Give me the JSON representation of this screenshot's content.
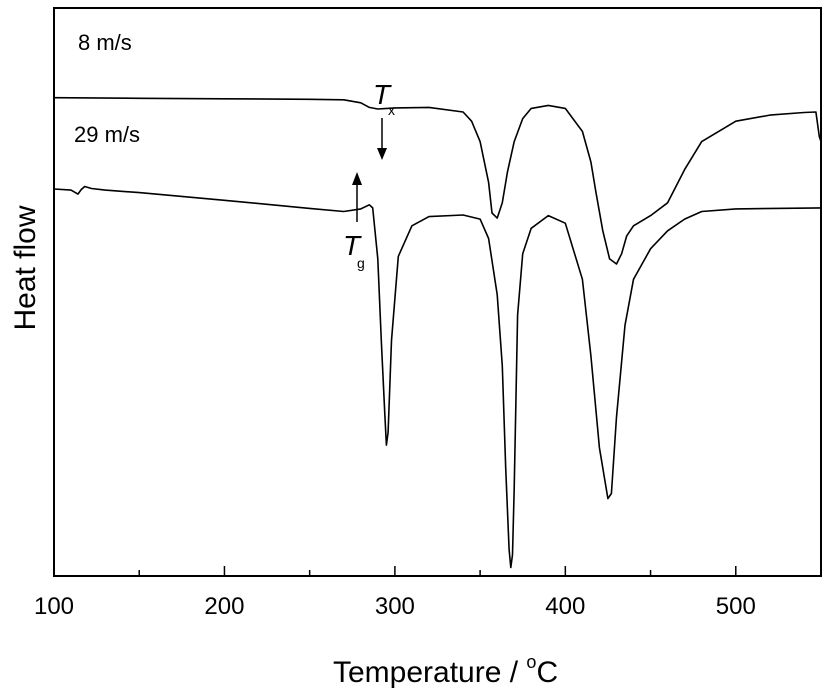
{
  "chart_data": {
    "type": "line",
    "xlabel": "Temperature / °C",
    "xlabel_main": "Temperature / ",
    "xlabel_degree": "o",
    "xlabel_unit": "C",
    "ylabel": "Heat flow",
    "xlim": [
      100,
      550
    ],
    "ylim": [
      0,
      100
    ],
    "x_ticks": [
      100,
      200,
      300,
      400,
      500
    ],
    "x_tick_labels": [
      "100",
      "200",
      "300",
      "400",
      "500"
    ],
    "x_minor_ticks": [
      150,
      250,
      350,
      450
    ],
    "y_ticks_shown": false,
    "grid": false,
    "series": [
      {
        "name": "8 m/s",
        "x": [
          100,
          150,
          200,
          250,
          270,
          280,
          285,
          290,
          300,
          320,
          340,
          345,
          350,
          355,
          357,
          360,
          363,
          366,
          370,
          375,
          380,
          390,
          400,
          410,
          415,
          418,
          422,
          426,
          430,
          433,
          436,
          440,
          450,
          460,
          470,
          480,
          500,
          520,
          540,
          547,
          549,
          550
        ],
        "y": [
          92.6,
          92.5,
          92.4,
          92.3,
          92.2,
          91.6,
          90.7,
          90.4,
          90.6,
          90.7,
          89.8,
          88.0,
          84.0,
          76.0,
          70.0,
          69.0,
          72.0,
          78.0,
          84.0,
          88.5,
          90.5,
          91.1,
          90.5,
          86.0,
          80.0,
          74.0,
          66.5,
          61.0,
          60.0,
          62.0,
          65.5,
          67.5,
          69.5,
          72.0,
          78.5,
          84.0,
          88.0,
          89.2,
          89.7,
          89.8,
          85.0,
          84.0
        ]
      },
      {
        "name": "29 m/s",
        "x": [
          100,
          110,
          114,
          116,
          118,
          122,
          130,
          150,
          200,
          250,
          270,
          280,
          285,
          287,
          290,
          292,
          294,
          295,
          296,
          298,
          302,
          310,
          320,
          340,
          350,
          355,
          360,
          363,
          365,
          367,
          368,
          369,
          370,
          372,
          375,
          380,
          390,
          400,
          410,
          415,
          420,
          425,
          427,
          430,
          435,
          440,
          450,
          460,
          470,
          480,
          500,
          550
        ],
        "y": [
          74.7,
          74.5,
          73.7,
          74.6,
          75.2,
          74.8,
          74.5,
          74.0,
          72.5,
          70.9,
          70.3,
          70.8,
          71.6,
          71.0,
          61.0,
          45.0,
          31.0,
          24.5,
          27.0,
          45.0,
          61.5,
          67.5,
          69.3,
          69.6,
          68.8,
          65.0,
          54.0,
          40.0,
          20.0,
          4.0,
          0.5,
          3.0,
          16.0,
          50.0,
          62.0,
          67.0,
          69.5,
          68.0,
          57.0,
          42.0,
          24.0,
          14.0,
          15.0,
          30.0,
          48.0,
          57.0,
          63.0,
          66.5,
          68.8,
          70.3,
          70.8,
          71.0
        ]
      }
    ],
    "annotations": [
      {
        "symbol": "T",
        "subscript": "x",
        "x": 292
      },
      {
        "symbol": "T",
        "subscript": "g",
        "x": 280
      }
    ]
  }
}
